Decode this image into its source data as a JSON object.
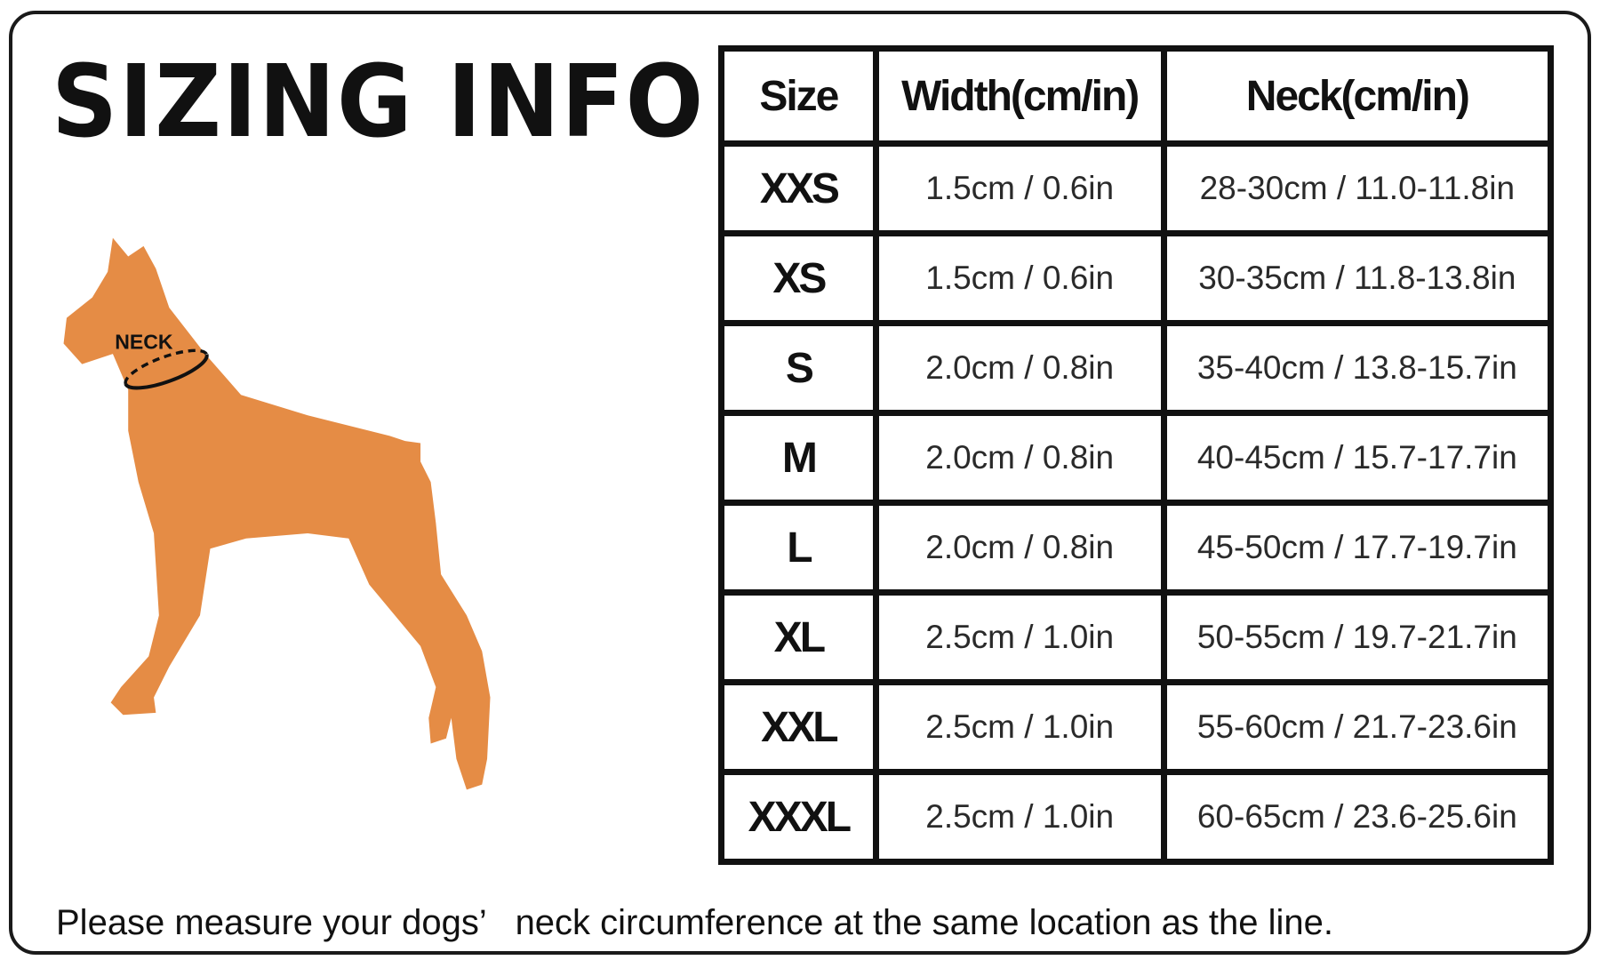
{
  "title": "SIZING INFO",
  "dog_label": "NECK",
  "colors": {
    "dog": "#E58C45",
    "border": "#111111"
  },
  "table": {
    "headers": [
      "Size",
      "Width(cm/in)",
      "Neck(cm/in)"
    ],
    "rows": [
      {
        "size": "XXS",
        "width": "1.5cm / 0.6in",
        "neck": "28-30cm / 11.0-11.8in"
      },
      {
        "size": "XS",
        "width": "1.5cm / 0.6in",
        "neck": "30-35cm / 11.8-13.8in"
      },
      {
        "size": "S",
        "width": "2.0cm / 0.8in",
        "neck": "35-40cm / 13.8-15.7in"
      },
      {
        "size": "M",
        "width": "2.0cm / 0.8in",
        "neck": "40-45cm / 15.7-17.7in"
      },
      {
        "size": "L",
        "width": "2.0cm / 0.8in",
        "neck": "45-50cm / 17.7-19.7in"
      },
      {
        "size": "XL",
        "width": "2.5cm / 1.0in",
        "neck": "50-55cm / 19.7-21.7in"
      },
      {
        "size": "XXL",
        "width": "2.5cm / 1.0in",
        "neck": "55-60cm / 21.7-23.6in"
      },
      {
        "size": "XXXL",
        "width": "2.5cm / 1.0in",
        "neck": "60-65cm / 23.6-25.6in"
      }
    ]
  },
  "note": "Please measure your dogs’   neck circumference at the same location as the line."
}
